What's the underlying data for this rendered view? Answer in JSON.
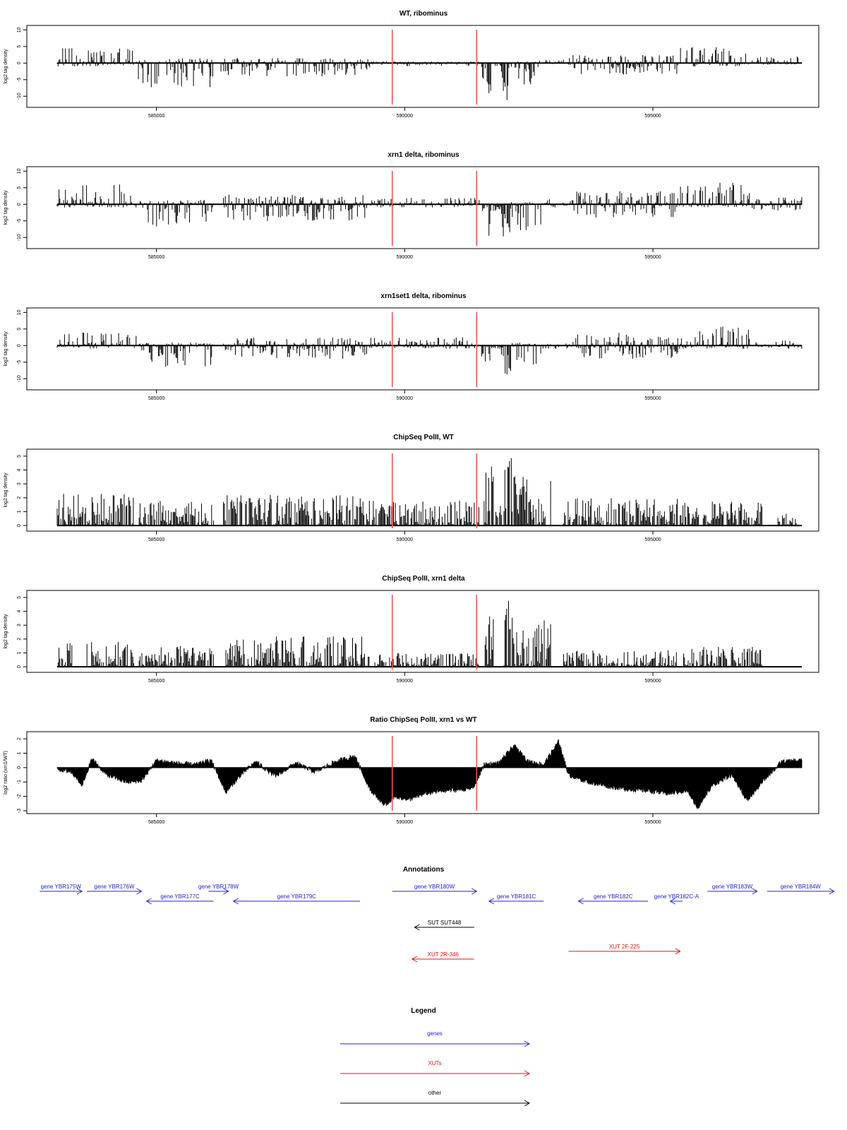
{
  "colors": {
    "marker": "#ee5555",
    "gene": "#2222dd",
    "xut": "#ee1111",
    "other": "#000000",
    "axis": "#000000"
  },
  "markers_x": [
    589750,
    591450
  ],
  "chart_data": [
    {
      "type": "bar",
      "title": "WT, ribominus",
      "xlabel": "",
      "ylabel": "log2 tag density",
      "xlim": [
        583000,
        598000
      ],
      "ylim": [
        -12.5,
        10.5
      ],
      "yticks": [
        -10,
        -5,
        0,
        5,
        10
      ],
      "xticks": [
        585000,
        590000,
        595000
      ],
      "baseline": 0,
      "segments": [
        {
          "x0": 583000,
          "x1": 584550,
          "lo": -1,
          "hi": 5
        },
        {
          "x0": 584600,
          "x1": 586150,
          "lo": -7.5,
          "hi": 1.5
        },
        {
          "x0": 586300,
          "x1": 589300,
          "lo": -4,
          "hi": 1.5
        },
        {
          "x0": 589300,
          "x1": 591500,
          "lo": -1,
          "hi": 0.5
        },
        {
          "x0": 591550,
          "x1": 591750,
          "lo": -10.5,
          "hi": 0
        },
        {
          "x0": 591750,
          "x1": 591950,
          "lo": -1,
          "hi": 0
        },
        {
          "x0": 591950,
          "x1": 592150,
          "lo": -11.5,
          "hi": 0
        },
        {
          "x0": 592150,
          "x1": 592700,
          "lo": -8,
          "hi": 0.5
        },
        {
          "x0": 592700,
          "x1": 593300,
          "lo": -0.5,
          "hi": 1
        },
        {
          "x0": 593300,
          "x1": 595500,
          "lo": -3.5,
          "hi": 2.5
        },
        {
          "x0": 595500,
          "x1": 597000,
          "lo": -1,
          "hi": 5
        },
        {
          "x0": 597000,
          "x1": 598000,
          "lo": -0.5,
          "hi": 2
        }
      ]
    },
    {
      "type": "bar",
      "title": "xrn1 delta, ribominus",
      "xlabel": "",
      "ylabel": "log2 tag density",
      "xlim": [
        583000,
        598000
      ],
      "ylim": [
        -12.5,
        10.5
      ],
      "yticks": [
        -10,
        -5,
        0,
        5,
        10
      ],
      "xticks": [
        585000,
        590000,
        595000
      ],
      "baseline": 0,
      "segments": [
        {
          "x0": 583000,
          "x1": 584600,
          "lo": -1,
          "hi": 6.5
        },
        {
          "x0": 584650,
          "x1": 586150,
          "lo": -8.5,
          "hi": 1.5
        },
        {
          "x0": 586350,
          "x1": 589250,
          "lo": -5,
          "hi": 3
        },
        {
          "x0": 589300,
          "x1": 591500,
          "lo": -1,
          "hi": 2
        },
        {
          "x0": 591550,
          "x1": 591750,
          "lo": -9.5,
          "hi": 0
        },
        {
          "x0": 591750,
          "x1": 591950,
          "lo": -2,
          "hi": 0
        },
        {
          "x0": 591950,
          "x1": 592150,
          "lo": -10,
          "hi": 0
        },
        {
          "x0": 592150,
          "x1": 592750,
          "lo": -8,
          "hi": 1
        },
        {
          "x0": 592750,
          "x1": 593300,
          "lo": -1,
          "hi": 1.5
        },
        {
          "x0": 593300,
          "x1": 595500,
          "lo": -4,
          "hi": 4
        },
        {
          "x0": 595500,
          "x1": 597000,
          "lo": -1,
          "hi": 7
        },
        {
          "x0": 597000,
          "x1": 598000,
          "lo": -2,
          "hi": 2.5
        }
      ]
    },
    {
      "type": "bar",
      "title": "xrn1set1 delta, ribominus",
      "xlabel": "",
      "ylabel": "log2 tag density",
      "xlim": [
        583000,
        598000
      ],
      "ylim": [
        -12.5,
        10.5
      ],
      "yticks": [
        -10,
        -5,
        0,
        5,
        10
      ],
      "xticks": [
        585000,
        590000,
        595000
      ],
      "baseline": 0,
      "segments": [
        {
          "x0": 583000,
          "x1": 584600,
          "lo": -1,
          "hi": 4
        },
        {
          "x0": 584650,
          "x1": 586150,
          "lo": -6.5,
          "hi": 1
        },
        {
          "x0": 586350,
          "x1": 589250,
          "lo": -4,
          "hi": 2.5
        },
        {
          "x0": 589300,
          "x1": 591500,
          "lo": -1,
          "hi": 2.5
        },
        {
          "x0": 591550,
          "x1": 591750,
          "lo": -5,
          "hi": 0
        },
        {
          "x0": 591750,
          "x1": 591950,
          "lo": -1,
          "hi": 0
        },
        {
          "x0": 591950,
          "x1": 592150,
          "lo": -9,
          "hi": 0
        },
        {
          "x0": 592150,
          "x1": 592750,
          "lo": -6,
          "hi": 1
        },
        {
          "x0": 592750,
          "x1": 593300,
          "lo": -1,
          "hi": 1
        },
        {
          "x0": 593300,
          "x1": 595500,
          "lo": -4,
          "hi": 4
        },
        {
          "x0": 595500,
          "x1": 597000,
          "lo": -1,
          "hi": 6
        },
        {
          "x0": 597000,
          "x1": 598000,
          "lo": -1,
          "hi": 1.5
        }
      ]
    },
    {
      "type": "bar",
      "title": "ChipSeq PolII, WT",
      "xlabel": "",
      "ylabel": "log2 tag density",
      "xlim": [
        583000,
        598000
      ],
      "ylim": [
        -0.2,
        5.3
      ],
      "yticks": [
        0,
        1,
        2,
        3,
        4,
        5
      ],
      "xticks": [
        585000,
        590000,
        595000
      ],
      "baseline": 0,
      "segments": [
        {
          "x0": 583000,
          "x1": 584550,
          "lo": 0,
          "hi": 2.3
        },
        {
          "x0": 584650,
          "x1": 586150,
          "lo": 0,
          "hi": 2
        },
        {
          "x0": 586350,
          "x1": 589300,
          "lo": 0,
          "hi": 2.2
        },
        {
          "x0": 589350,
          "x1": 591500,
          "lo": 0,
          "hi": 1.8
        },
        {
          "x0": 591600,
          "x1": 591800,
          "lo": 0,
          "hi": 4.4
        },
        {
          "x0": 591800,
          "x1": 591950,
          "lo": 0,
          "hi": 1.5
        },
        {
          "x0": 592000,
          "x1": 592200,
          "lo": 0,
          "hi": 5
        },
        {
          "x0": 592200,
          "x1": 592950,
          "lo": 0,
          "hi": 3.6
        },
        {
          "x0": 593200,
          "x1": 595500,
          "lo": 0,
          "hi": 2
        },
        {
          "x0": 595550,
          "x1": 597200,
          "lo": 0,
          "hi": 1.8
        },
        {
          "x0": 597500,
          "x1": 597900,
          "lo": 0,
          "hi": 1
        }
      ]
    },
    {
      "type": "bar",
      "title": "ChipSeq PolII, xrn1 delta",
      "xlabel": "",
      "ylabel": "log2 tag density",
      "xlim": [
        583000,
        598000
      ],
      "ylim": [
        -0.2,
        5.3
      ],
      "yticks": [
        0,
        1,
        2,
        3,
        4,
        5
      ],
      "xticks": [
        585000,
        590000,
        595000
      ],
      "baseline": 0,
      "segments": [
        {
          "x0": 583000,
          "x1": 583300,
          "lo": 0,
          "hi": 2.2
        },
        {
          "x0": 583600,
          "x1": 584550,
          "lo": 0,
          "hi": 1.8
        },
        {
          "x0": 584650,
          "x1": 586150,
          "lo": 0,
          "hi": 1.5
        },
        {
          "x0": 586400,
          "x1": 589300,
          "lo": 0,
          "hi": 2.2
        },
        {
          "x0": 589400,
          "x1": 591500,
          "lo": 0,
          "hi": 1
        },
        {
          "x0": 591600,
          "x1": 591800,
          "lo": 0,
          "hi": 3.8
        },
        {
          "x0": 592000,
          "x1": 592200,
          "lo": 0,
          "hi": 4.8
        },
        {
          "x0": 592200,
          "x1": 592950,
          "lo": 0,
          "hi": 3.6
        },
        {
          "x0": 593200,
          "x1": 595500,
          "lo": 0,
          "hi": 1.2
        },
        {
          "x0": 595600,
          "x1": 597200,
          "lo": 0,
          "hi": 1.5
        }
      ]
    },
    {
      "type": "area",
      "title": "Ratio ChipSeq PolII, xrn1 vs WT",
      "xlabel": "",
      "ylabel": "log2 ratio (xrn1/WT)",
      "xlim": [
        583000,
        598000
      ],
      "ylim": [
        -3,
        2.3
      ],
      "yticks": [
        -3,
        -2,
        -1,
        0,
        1,
        2
      ],
      "xticks": [
        585000,
        590000,
        595000
      ],
      "baseline": 0,
      "x": [
        583000,
        583300,
        583500,
        583700,
        584000,
        584400,
        584700,
        585000,
        585400,
        585800,
        586100,
        586400,
        586700,
        587000,
        587400,
        587800,
        588200,
        588600,
        589000,
        589300,
        589600,
        589800,
        590100,
        590400,
        590800,
        591200,
        591400,
        591600,
        591900,
        592200,
        592500,
        592800,
        593100,
        593300,
        593700,
        594100,
        594500,
        594900,
        595300,
        595700,
        595900,
        596200,
        596600,
        596900,
        597300,
        597600,
        598000
      ],
      "y": [
        -0.1,
        -0.3,
        -1.2,
        0.6,
        -0.5,
        -1,
        -0.9,
        0.5,
        0.3,
        0.2,
        0.5,
        -1.7,
        -0.5,
        0.4,
        -0.6,
        0.3,
        -0.3,
        0.4,
        0.8,
        -1.5,
        -2.6,
        -2,
        -2.2,
        -1.8,
        -1.6,
        -1.5,
        -1.3,
        0.2,
        0.3,
        1.5,
        0.4,
        0.2,
        1.8,
        -0.5,
        -1,
        -1.3,
        -1.5,
        -1.6,
        -1.8,
        -1.6,
        -2.8,
        -1.2,
        -0.5,
        -2.3,
        -0.6,
        0.4,
        0.5
      ]
    }
  ],
  "annotations": {
    "title": "Annotations",
    "xlim": [
      583000,
      598000
    ],
    "rows": [
      [
        {
          "label": "gene YBR175W",
          "x0": 582650,
          "x1": 583500,
          "dir": "right",
          "kind": "gene",
          "row": 0
        },
        {
          "label": "gene YBR176W",
          "x0": 583600,
          "x1": 584700,
          "dir": "right",
          "kind": "gene",
          "row": 0
        },
        {
          "label": "gene YBR177C",
          "x0": 584800,
          "x1": 586150,
          "dir": "left",
          "kind": "gene",
          "row": 1
        },
        {
          "label": "gene YBR178W",
          "x0": 586050,
          "x1": 586450,
          "dir": "right",
          "kind": "gene",
          "row": 0
        },
        {
          "label": "gene YBR179C",
          "x0": 586550,
          "x1": 589100,
          "dir": "left",
          "kind": "gene",
          "row": 1
        },
        {
          "label": "gene YBR180W",
          "x0": 589750,
          "x1": 591450,
          "dir": "right",
          "kind": "gene",
          "row": 0
        },
        {
          "label": "gene YBR181C",
          "x0": 591700,
          "x1": 592800,
          "dir": "left",
          "kind": "gene",
          "row": 1
        },
        {
          "label": "gene YBR182C",
          "x0": 593500,
          "x1": 594900,
          "dir": "left",
          "kind": "gene",
          "row": 1
        },
        {
          "label": "gene YBR182C-A",
          "x0": 595350,
          "x1": 595600,
          "dir": "left",
          "kind": "gene",
          "row": 1
        },
        {
          "label": "gene YBR183W",
          "x0": 596100,
          "x1": 597100,
          "dir": "right",
          "kind": "gene",
          "row": 0
        },
        {
          "label": "gene YBR184W",
          "x0": 597300,
          "x1": 598650,
          "dir": "right",
          "kind": "gene",
          "row": 0
        }
      ],
      [
        {
          "label": "SUT SUT448",
          "x0": 590200,
          "x1": 591400,
          "dir": "left",
          "kind": "other",
          "row": 2
        }
      ],
      [
        {
          "label": "XUT 2R-346",
          "x0": 590150,
          "x1": 591400,
          "dir": "left",
          "kind": "xut",
          "row": 4
        },
        {
          "label": "XUT 2F-225",
          "x0": 593300,
          "x1": 595550,
          "dir": "right",
          "kind": "xut",
          "row": 3
        }
      ]
    ]
  },
  "legend": {
    "title": "Legend",
    "items": [
      {
        "label": "genes",
        "kind": "gene"
      },
      {
        "label": "XUTs",
        "kind": "xut"
      },
      {
        "label": "other",
        "kind": "other"
      }
    ]
  }
}
